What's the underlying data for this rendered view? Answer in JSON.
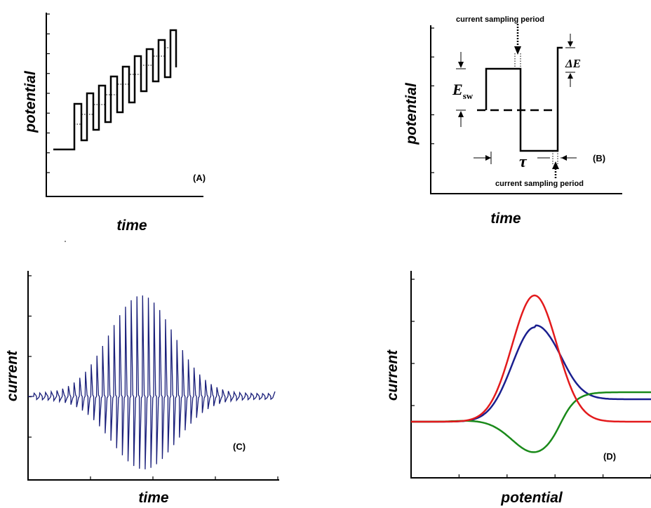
{
  "panels": {
    "a": {
      "label": "(A)",
      "xlabel": "time",
      "ylabel": "potential",
      "ytick_count": 9
    },
    "b": {
      "label": "(B)",
      "xlabel": "time",
      "ylabel": "potential",
      "ytick_count": 6,
      "annotation_top": "current sampling period",
      "annotation_bottom": "current sampling period",
      "esw_main": "E",
      "esw_sub": "sw",
      "delta_e": "ΔE",
      "tau": "τ"
    },
    "c": {
      "label": "(C)",
      "xlabel": "time",
      "ylabel": "current",
      "ytick_count": 5,
      "xtick_count": 5,
      "series_color": "#1a1f7a",
      "pulse_peak": 1.0,
      "baseline_level": 0.0
    },
    "d": {
      "label": "(D)",
      "xlabel": "potential",
      "ylabel": "current",
      "ytick_count": 4,
      "xtick_count": 6,
      "colors": {
        "net": "#e31a1c",
        "forward": "#1a1f8f",
        "reverse": "#1a8a1a"
      }
    }
  }
}
